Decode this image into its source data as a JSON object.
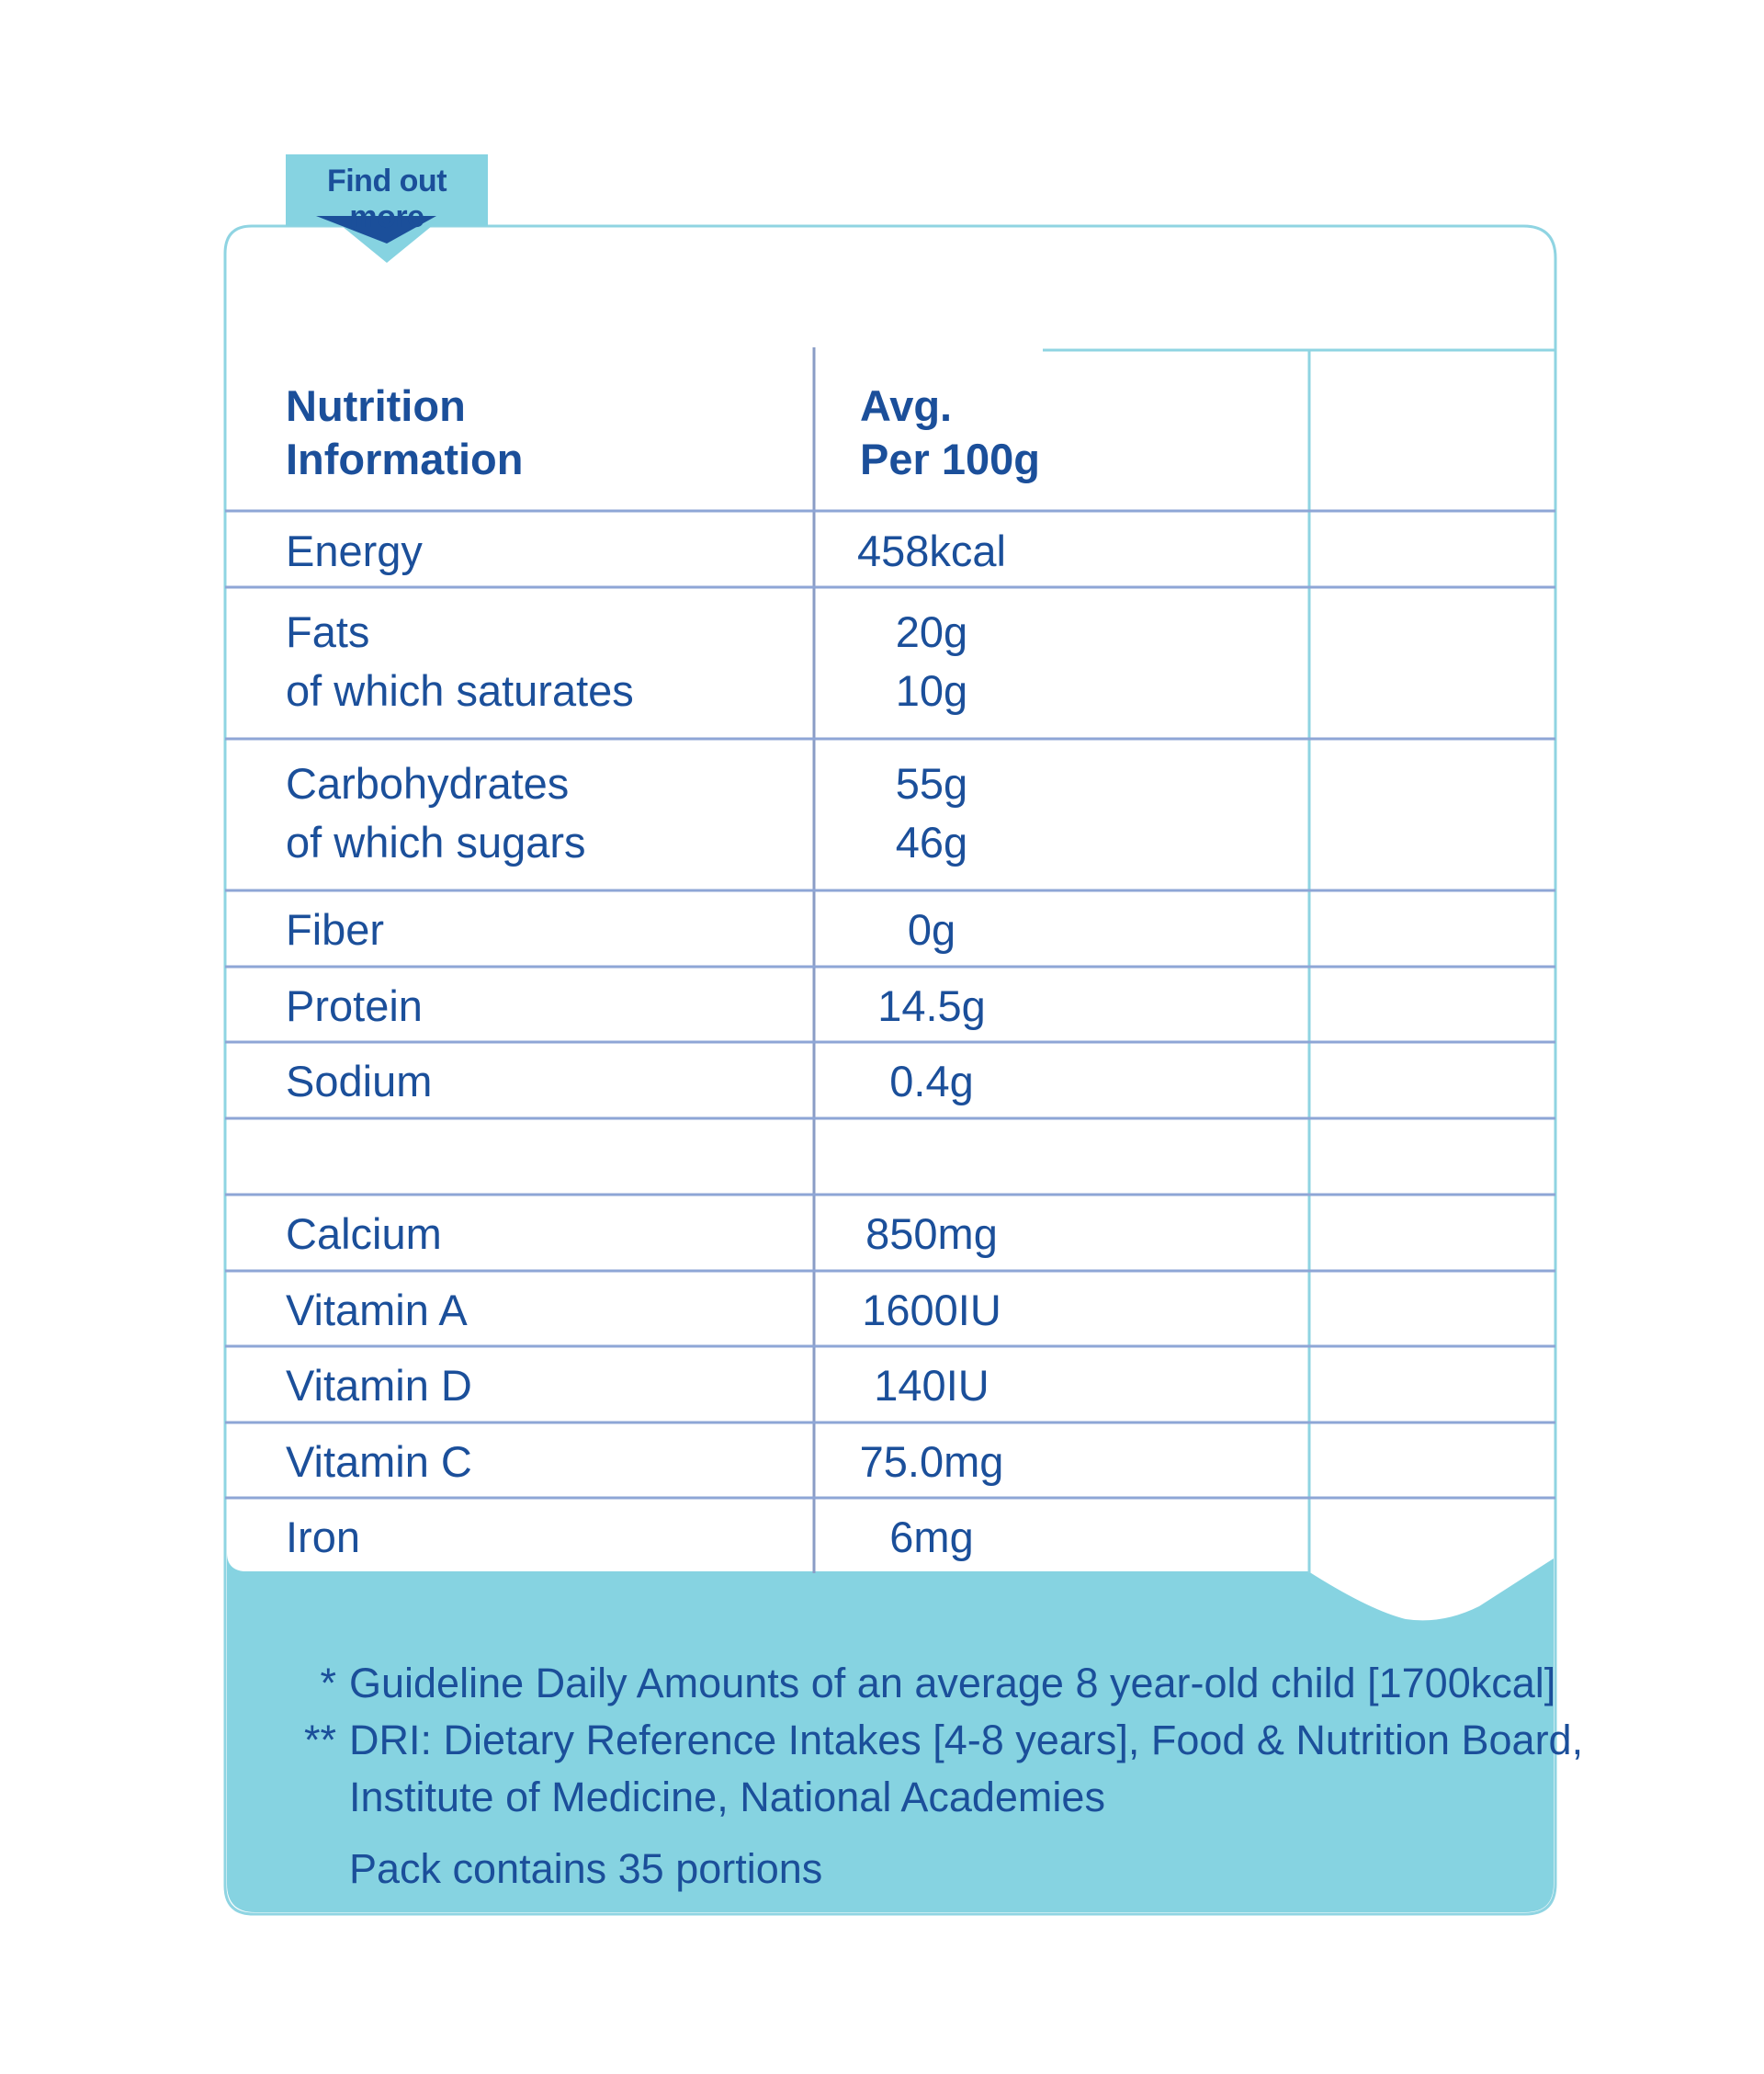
{
  "tab": {
    "label": "Find out more"
  },
  "table": {
    "header": {
      "nutrient": "Nutrition\nInformation",
      "per100": "Avg.\nPer 100g"
    },
    "rows": [
      {
        "nutrient": "Energy",
        "value": "458kcal"
      },
      {
        "nutrient": "Fats\nof which saturates",
        "value": "20g\n10g"
      },
      {
        "nutrient": "Carbohydrates\nof which sugars",
        "value": "55g\n46g"
      },
      {
        "nutrient": "Fiber",
        "value": "0g"
      },
      {
        "nutrient": "Protein",
        "value": "14.5g"
      },
      {
        "nutrient": "Sodium",
        "value": "0.4g"
      },
      {
        "nutrient": "",
        "value": ""
      },
      {
        "nutrient": "Calcium",
        "value": "850mg"
      },
      {
        "nutrient": "Vitamin A",
        "value": "1600IU"
      },
      {
        "nutrient": "Vitamin D",
        "value": "140IU"
      },
      {
        "nutrient": "Vitamin C",
        "value": "75.0mg"
      },
      {
        "nutrient": "Iron",
        "value": "6mg"
      }
    ]
  },
  "footnotes": {
    "gda_marker": "*",
    "gda": "Guideline Daily Amounts of an average 8 year-old child [1700kcal]",
    "dri_marker": "**",
    "dri_line1": "DRI: Dietary Reference Intakes [4-8 years], Food & Nutrition Board,",
    "dri_line2": "Institute of Medicine, National Academies",
    "portions": "Pack contains 35 portions"
  },
  "colors": {
    "text": "#1b4f9a",
    "accent": "#86d3e1",
    "border": "#8fd4e2",
    "row_line": "#8ea6d6",
    "column_line": "#8a9cc6",
    "tab_arrow": "#1b4f9a"
  }
}
